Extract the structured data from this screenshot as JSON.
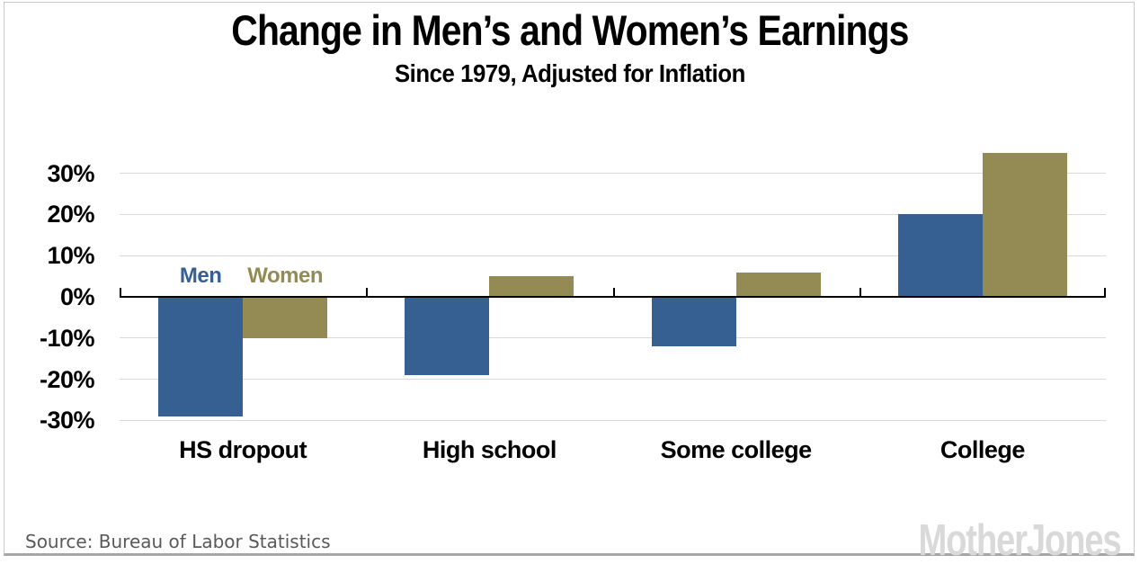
{
  "chart_data": {
    "type": "bar",
    "title": "Change in Men’s and Women’s Earnings",
    "subtitle": "Since 1979, Adjusted for Inflation",
    "categories": [
      "HS dropout",
      "High school",
      "Some college",
      "College"
    ],
    "series": [
      {
        "name": "Men",
        "color": "#366092",
        "values": [
          -29,
          -19,
          -12,
          20
        ]
      },
      {
        "name": "Women",
        "color": "#948A54",
        "values": [
          -10,
          5,
          6,
          35
        ]
      }
    ],
    "y_ticks": [
      {
        "value": 30,
        "label": "30%"
      },
      {
        "value": 20,
        "label": "20%"
      },
      {
        "value": 10,
        "label": "10%"
      },
      {
        "value": 0,
        "label": "0%"
      },
      {
        "value": -10,
        "label": "-10%"
      },
      {
        "value": -20,
        "label": "-20%"
      },
      {
        "value": -30,
        "label": "-30%"
      }
    ],
    "ylim": [
      -30,
      35
    ],
    "unit": "%",
    "grid": true,
    "legend": {
      "position": "inside-above-first-group",
      "entries": [
        "Men",
        "Women"
      ]
    }
  },
  "footer": {
    "source": "Source: Bureau of Labor Statistics",
    "brand": "MotherJones"
  }
}
